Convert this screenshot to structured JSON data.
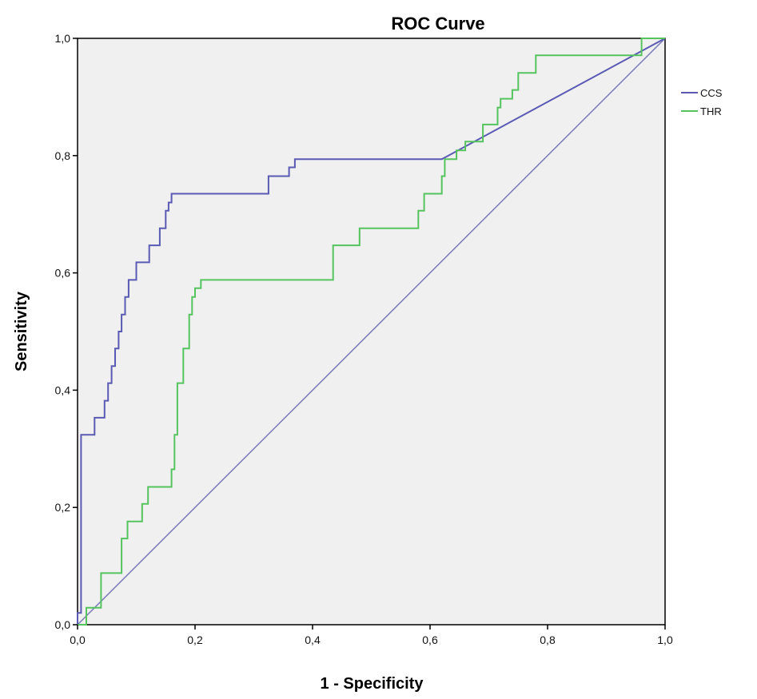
{
  "chart_data": {
    "type": "line",
    "title": "ROC Curve",
    "xlabel": "1 - Specificity",
    "ylabel": "Sensitivity",
    "xlim": [
      0,
      1
    ],
    "ylim": [
      0,
      1
    ],
    "x_ticks": [
      "0,0",
      "0,2",
      "0,4",
      "0,6",
      "0,8",
      "1,0"
    ],
    "y_ticks": [
      "0,0",
      "0,2",
      "0,4",
      "0,6",
      "0,8",
      "1,0"
    ],
    "grid": false,
    "legend_position": "right",
    "plot_background": "#f0f0f0",
    "reference_line": {
      "x": [
        0,
        1
      ],
      "y": [
        0,
        1
      ],
      "color": "#7a7ab8"
    },
    "series": [
      {
        "name": "CCS",
        "color": "#5a5ab4",
        "x": [
          0.0,
          0.0,
          0.006,
          0.006,
          0.029,
          0.029,
          0.046,
          0.046,
          0.052,
          0.052,
          0.058,
          0.058,
          0.064,
          0.064,
          0.07,
          0.07,
          0.075,
          0.075,
          0.081,
          0.081,
          0.087,
          0.087,
          0.1,
          0.1,
          0.122,
          0.122,
          0.14,
          0.14,
          0.15,
          0.15,
          0.155,
          0.155,
          0.16,
          0.16,
          0.17,
          0.17,
          0.325,
          0.325,
          0.36,
          0.36,
          0.37,
          0.37,
          0.62,
          1.0
        ],
        "y": [
          0.0,
          0.02,
          0.02,
          0.324,
          0.324,
          0.353,
          0.353,
          0.382,
          0.382,
          0.412,
          0.412,
          0.441,
          0.441,
          0.471,
          0.471,
          0.5,
          0.5,
          0.529,
          0.529,
          0.559,
          0.559,
          0.588,
          0.588,
          0.618,
          0.618,
          0.647,
          0.647,
          0.676,
          0.676,
          0.706,
          0.706,
          0.72,
          0.72,
          0.735,
          0.735,
          0.735,
          0.735,
          0.765,
          0.765,
          0.78,
          0.78,
          0.794,
          0.794,
          1.0
        ]
      },
      {
        "name": "THR",
        "color": "#55c45e",
        "x": [
          0.0,
          0.015,
          0.015,
          0.04,
          0.04,
          0.075,
          0.075,
          0.085,
          0.085,
          0.11,
          0.11,
          0.12,
          0.12,
          0.16,
          0.16,
          0.165,
          0.165,
          0.17,
          0.17,
          0.18,
          0.18,
          0.19,
          0.19,
          0.195,
          0.195,
          0.2,
          0.2,
          0.21,
          0.21,
          0.435,
          0.435,
          0.48,
          0.48,
          0.58,
          0.58,
          0.59,
          0.59,
          0.62,
          0.62,
          0.625,
          0.625,
          0.645,
          0.645,
          0.66,
          0.66,
          0.69,
          0.69,
          0.715,
          0.715,
          0.72,
          0.72,
          0.74,
          0.74,
          0.75,
          0.75,
          0.78,
          0.78,
          0.83,
          0.83,
          0.84,
          0.84,
          0.96,
          0.96,
          1.0
        ],
        "y": [
          0.0,
          0.0,
          0.029,
          0.029,
          0.088,
          0.088,
          0.147,
          0.147,
          0.176,
          0.176,
          0.206,
          0.206,
          0.235,
          0.235,
          0.265,
          0.265,
          0.324,
          0.324,
          0.412,
          0.412,
          0.471,
          0.471,
          0.529,
          0.529,
          0.559,
          0.559,
          0.574,
          0.574,
          0.588,
          0.588,
          0.647,
          0.647,
          0.676,
          0.676,
          0.706,
          0.706,
          0.735,
          0.735,
          0.765,
          0.765,
          0.794,
          0.794,
          0.809,
          0.809,
          0.824,
          0.824,
          0.853,
          0.853,
          0.882,
          0.882,
          0.897,
          0.897,
          0.912,
          0.912,
          0.941,
          0.941,
          0.971,
          0.971,
          0.971,
          0.971,
          0.971,
          0.971,
          1.0,
          1.0
        ]
      }
    ]
  }
}
